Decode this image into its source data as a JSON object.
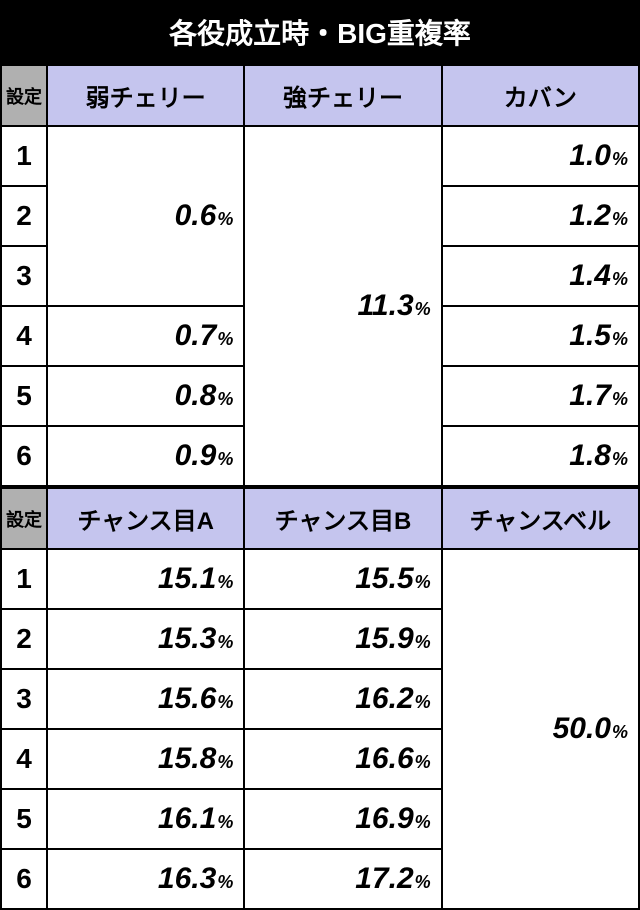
{
  "title": "各役成立時・BIG重複率",
  "section1": {
    "settei_label": "設定",
    "cols": [
      "弱チェリー",
      "強チェリー",
      "カバン"
    ],
    "rows": [
      "1",
      "2",
      "3",
      "4",
      "5",
      "6"
    ],
    "col1": {
      "span1": {
        "rows": 3,
        "val": "0.6"
      },
      "r4": "0.7",
      "r5": "0.8",
      "r6": "0.9"
    },
    "col2": {
      "span": {
        "rows": 6,
        "val": "11.3"
      }
    },
    "col3": {
      "r1": "1.0",
      "r2": "1.2",
      "r3": "1.4",
      "r4": "1.5",
      "r5": "1.7",
      "r6": "1.8"
    }
  },
  "section2": {
    "settei_label": "設定",
    "cols": [
      "チャンス目A",
      "チャンス目B",
      "チャンスベル"
    ],
    "rows": [
      "1",
      "2",
      "3",
      "4",
      "5",
      "6"
    ],
    "col1": {
      "r1": "15.1",
      "r2": "15.3",
      "r3": "15.6",
      "r4": "15.8",
      "r5": "16.1",
      "r6": "16.3"
    },
    "col2": {
      "r1": "15.5",
      "r2": "15.9",
      "r3": "16.2",
      "r4": "16.6",
      "r5": "16.9",
      "r6": "17.2"
    },
    "col3": {
      "span": {
        "rows": 6,
        "val": "50.0"
      }
    }
  },
  "pct_symbol": "%"
}
